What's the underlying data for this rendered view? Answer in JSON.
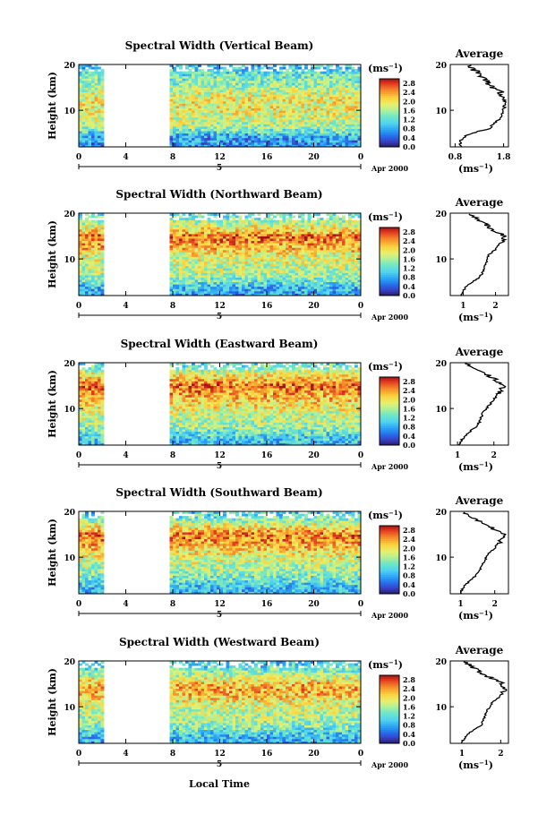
{
  "figure": {
    "x_axis_label": "Local Time",
    "date_label": "Apr 2000",
    "date_marker": "5",
    "y_axis_label": "Height (km)",
    "colorbar_unit": "(ms",
    "avg_title": "Average",
    "avg_unit": "(ms",
    "unit_exp": "−1",
    "unit_close": ")"
  },
  "chart_data": [
    {
      "type": "heatmap",
      "title": "Spectral Width (Vertical Beam)",
      "ylabel": "Height (km)",
      "xlabel": "Local Time",
      "x_ticks": [
        "0",
        "4",
        "8",
        "12",
        "16",
        "20",
        "0"
      ],
      "xlim": [
        0,
        24
      ],
      "y_ticks": [
        "20",
        "10"
      ],
      "ylim": [
        2,
        20
      ],
      "data_gaps": [
        [
          2,
          7.8
        ]
      ],
      "colorbar": {
        "unit": "ms^-1",
        "ticks": [
          "2.8",
          "2.4",
          "2.0",
          "1.6",
          "1.2",
          "0.8",
          "0.4",
          "0.0"
        ],
        "range": [
          0,
          3.0
        ]
      },
      "average": {
        "x_ticks": [
          "0.8",
          "1.8"
        ],
        "xlim": [
          0.7,
          1.9
        ],
        "heights": [
          2,
          3,
          4,
          5,
          6,
          7,
          8,
          9,
          10,
          11,
          12,
          13,
          14,
          15,
          16,
          17,
          18,
          19,
          20
        ],
        "values": [
          0.92,
          0.9,
          0.95,
          1.15,
          1.5,
          1.6,
          1.7,
          1.75,
          1.8,
          1.82,
          1.82,
          1.78,
          1.72,
          1.55,
          1.45,
          1.4,
          1.3,
          1.15,
          1.05
        ]
      }
    },
    {
      "type": "heatmap",
      "title": "Spectral Width (Northward Beam)",
      "ylabel": "Height (km)",
      "xlabel": "Local Time",
      "x_ticks": [
        "0",
        "4",
        "8",
        "12",
        "16",
        "20",
        "0"
      ],
      "xlim": [
        0,
        24
      ],
      "y_ticks": [
        "20",
        "10"
      ],
      "ylim": [
        2,
        20
      ],
      "data_gaps": [
        [
          2,
          7.8
        ]
      ],
      "colorbar": {
        "unit": "ms^-1",
        "ticks": [
          "2.8",
          "2.4",
          "2.0",
          "1.6",
          "1.2",
          "0.8",
          "0.4",
          "0.0"
        ],
        "range": [
          0,
          3.0
        ]
      },
      "average": {
        "x_ticks": [
          "1",
          "2"
        ],
        "xlim": [
          0.6,
          2.4
        ],
        "heights": [
          2,
          3,
          4,
          5,
          6,
          7,
          8,
          9,
          10,
          11,
          12,
          13,
          14,
          15,
          16,
          17,
          18,
          19,
          20
        ],
        "values": [
          0.95,
          1.0,
          1.1,
          1.3,
          1.5,
          1.6,
          1.65,
          1.7,
          1.75,
          1.8,
          2.0,
          2.1,
          2.2,
          2.3,
          2.0,
          1.8,
          1.6,
          1.4,
          1.2
        ]
      }
    },
    {
      "type": "heatmap",
      "title": "Spectral Width (Eastward Beam)",
      "ylabel": "Height (km)",
      "xlabel": "Local Time",
      "x_ticks": [
        "0",
        "4",
        "8",
        "12",
        "16",
        "20",
        "0"
      ],
      "xlim": [
        0,
        24
      ],
      "y_ticks": [
        "20",
        "10"
      ],
      "ylim": [
        2,
        20
      ],
      "data_gaps": [
        [
          2,
          7.8
        ]
      ],
      "colorbar": {
        "unit": "ms^-1",
        "ticks": [
          "2.8",
          "2.4",
          "2.0",
          "1.6",
          "1.2",
          "0.8",
          "0.4",
          "0.0"
        ],
        "range": [
          0,
          3.0
        ]
      },
      "average": {
        "x_ticks": [
          "1",
          "2"
        ],
        "xlim": [
          0.8,
          2.4
        ],
        "heights": [
          2,
          3,
          4,
          5,
          6,
          7,
          8,
          9,
          10,
          11,
          12,
          13,
          14,
          15,
          16,
          17,
          18,
          19,
          20
        ],
        "values": [
          1.05,
          1.1,
          1.2,
          1.35,
          1.5,
          1.6,
          1.65,
          1.7,
          1.8,
          1.9,
          2.0,
          2.1,
          2.2,
          2.3,
          2.1,
          1.9,
          1.7,
          1.4,
          1.2
        ]
      }
    },
    {
      "type": "heatmap",
      "title": "Spectral Width (Southward Beam)",
      "ylabel": "Height (km)",
      "xlabel": "Local Time",
      "x_ticks": [
        "0",
        "4",
        "8",
        "12",
        "16",
        "20",
        "0"
      ],
      "xlim": [
        0,
        24
      ],
      "y_ticks": [
        "20",
        "10"
      ],
      "ylim": [
        2,
        20
      ],
      "data_gaps": [
        [
          2,
          7.8
        ]
      ],
      "colorbar": {
        "unit": "ms^-1",
        "ticks": [
          "2.8",
          "2.4",
          "2.0",
          "1.6",
          "1.2",
          "0.8",
          "0.4",
          "0.0"
        ],
        "range": [
          0,
          3.0
        ]
      },
      "average": {
        "x_ticks": [
          "1",
          "2"
        ],
        "xlim": [
          0.7,
          2.4
        ],
        "heights": [
          2,
          3,
          4,
          5,
          6,
          7,
          8,
          9,
          10,
          11,
          12,
          13,
          14,
          15,
          16,
          17,
          18,
          19,
          20
        ],
        "values": [
          1.0,
          1.05,
          1.15,
          1.3,
          1.45,
          1.55,
          1.6,
          1.7,
          1.75,
          1.85,
          2.0,
          2.1,
          2.2,
          2.25,
          2.0,
          1.8,
          1.5,
          1.3,
          1.1
        ]
      }
    },
    {
      "type": "heatmap",
      "title": "Spectral Width (Westward Beam)",
      "ylabel": "Height (km)",
      "xlabel": "Local Time",
      "x_ticks": [
        "0",
        "4",
        "8",
        "12",
        "16",
        "20",
        "0"
      ],
      "xlim": [
        0,
        24
      ],
      "y_ticks": [
        "20",
        "10"
      ],
      "ylim": [
        2,
        20
      ],
      "data_gaps": [
        [
          2,
          7.8
        ]
      ],
      "colorbar": {
        "unit": "ms^-1",
        "ticks": [
          "2.8",
          "2.4",
          "2.0",
          "1.6",
          "1.2",
          "0.8",
          "0.4",
          "0.0"
        ],
        "range": [
          0,
          3.0
        ]
      },
      "average": {
        "x_ticks": [
          "1",
          "2"
        ],
        "xlim": [
          0.7,
          2.2
        ],
        "heights": [
          2,
          3,
          4,
          5,
          6,
          7,
          8,
          9,
          10,
          11,
          12,
          13,
          14,
          15,
          16,
          17,
          18,
          19,
          20
        ],
        "values": [
          1.0,
          1.05,
          1.15,
          1.3,
          1.5,
          1.55,
          1.6,
          1.65,
          1.7,
          1.8,
          1.95,
          2.05,
          2.1,
          2.05,
          1.8,
          1.6,
          1.4,
          1.2,
          1.1
        ]
      }
    }
  ]
}
